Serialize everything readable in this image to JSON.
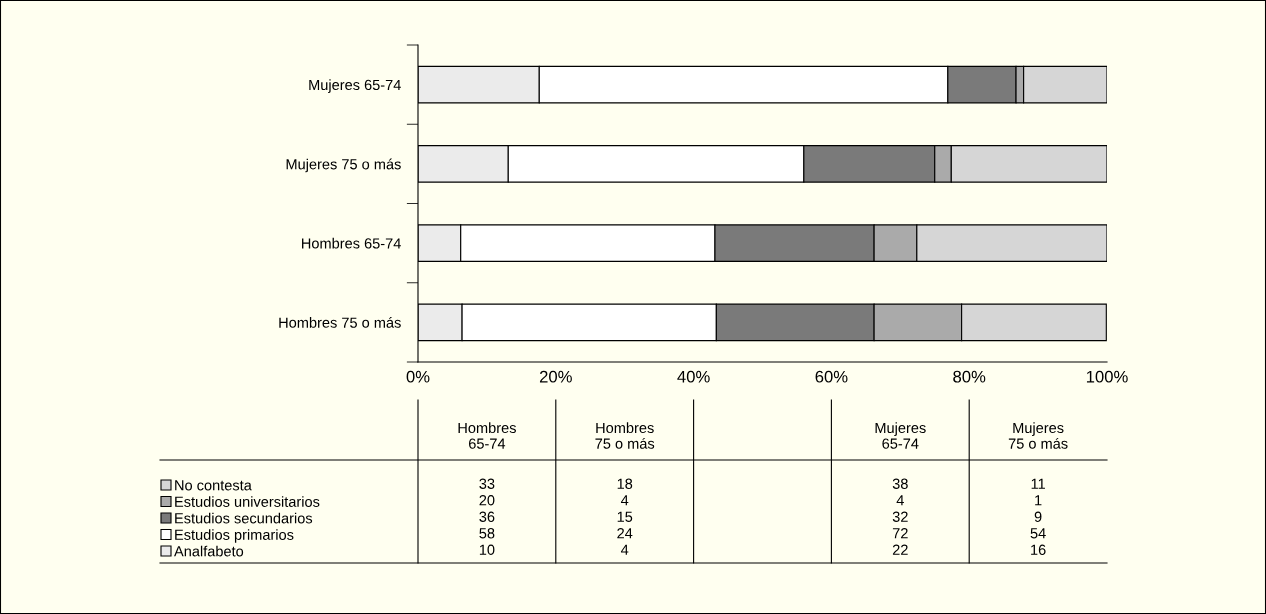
{
  "chart_data": [
    {
      "type": "bar",
      "orientation": "horizontal",
      "stacked": true,
      "categories": [
        "Mujeres 65-74",
        "Mujeres 75 o más",
        "Hombres 65-74",
        "Hombres 75 o más"
      ],
      "series": [
        {
          "color": "#ebebeb",
          "values": [
            17.6,
            13.1,
            6.2,
            6.4
          ]
        },
        {
          "color": "#ffffff",
          "values": [
            59.3,
            42.9,
            36.9,
            36.9
          ]
        },
        {
          "color": "#7a7a7a",
          "values": [
            9.9,
            19.0,
            23.1,
            22.9
          ]
        },
        {
          "color": "#aaaaaa",
          "values": [
            1.1,
            2.4,
            6.2,
            12.7
          ]
        },
        {
          "color": "#d6d6d6",
          "values": [
            12.1,
            22.6,
            27.6,
            21.0
          ]
        }
      ],
      "xlim": [
        0,
        100
      ],
      "xticks": [
        {
          "value": 0,
          "label": "0%"
        },
        {
          "value": 20,
          "label": "20%"
        },
        {
          "value": 40,
          "label": "40%"
        },
        {
          "value": 60,
          "label": "60%"
        },
        {
          "value": 80,
          "label": "80%"
        },
        {
          "value": 100,
          "label": "100%"
        }
      ],
      "grid": false
    },
    {
      "type": "heatmap",
      "categories": [
        "Hombres 65-74",
        "Hombres 75 o más",
        null,
        "Mujeres 65-74",
        "Mujeres 75 o más"
      ],
      "data_labels": true,
      "y_categories": [
        "No contesta",
        "Estudios universitarios",
        "Estudios secundarios",
        "Estudios primarios",
        "Analfabeto"
      ],
      "cells": [
        [
          33,
          18,
          null,
          38,
          11
        ],
        [
          20,
          4,
          null,
          4,
          1
        ],
        [
          36,
          15,
          null,
          32,
          9
        ],
        [
          58,
          24,
          null,
          72,
          54
        ],
        [
          10,
          4,
          null,
          22,
          16
        ]
      ]
    }
  ]
}
